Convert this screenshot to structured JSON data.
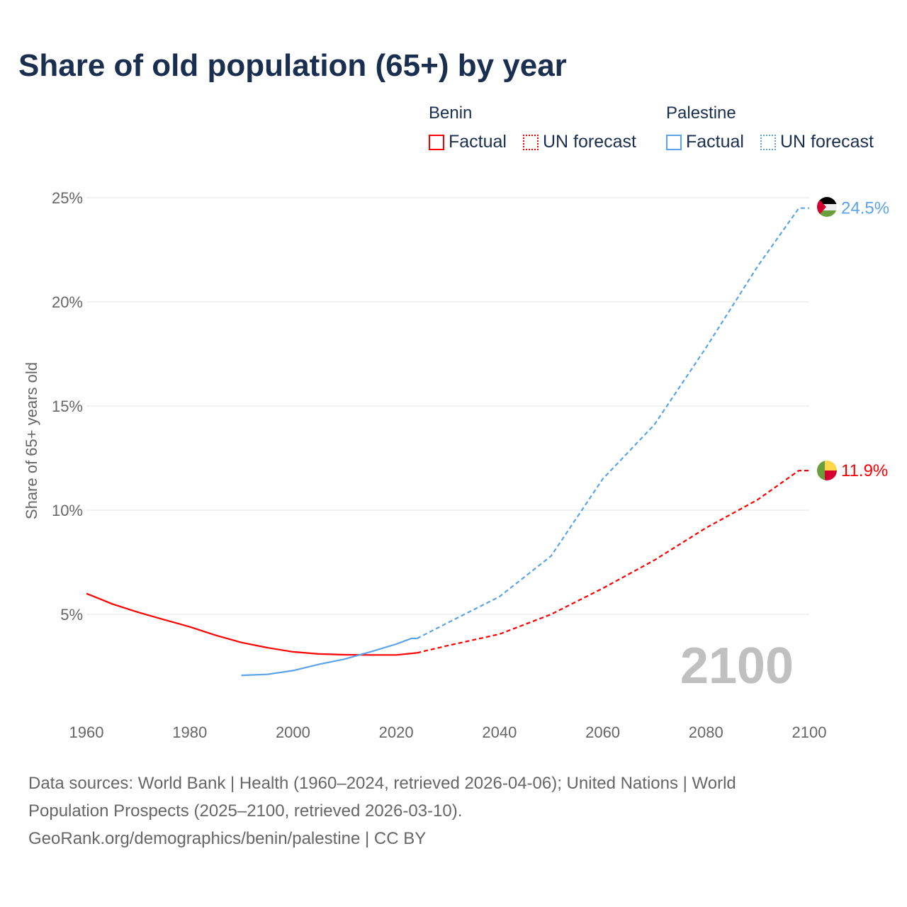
{
  "chart_data": {
    "type": "line",
    "title": "Share of old population (65+) by year",
    "ylabel": "Share of 65+ years old",
    "xlabel": "",
    "xlim": [
      1960,
      2100
    ],
    "ylim": [
      0,
      25
    ],
    "x_ticks": [
      "1960",
      "1980",
      "2000",
      "2020",
      "2040",
      "2060",
      "2080",
      "2100"
    ],
    "y_ticks": [
      {
        "v": 25,
        "label": "25%"
      },
      {
        "v": 20,
        "label": "20%"
      },
      {
        "v": 15,
        "label": "15%"
      },
      {
        "v": 10,
        "label": "10%"
      },
      {
        "v": 5,
        "label": "5%"
      }
    ],
    "grid": true,
    "year_watermark": "2100",
    "legend": {
      "groups": [
        {
          "name": "Benin",
          "factual": "Factual",
          "forecast": "UN forecast"
        },
        {
          "name": "Palestine",
          "factual": "Factual",
          "forecast": "UN forecast"
        }
      ],
      "placement": "top-right"
    },
    "series": [
      {
        "name": "Benin",
        "color": "#ff0000",
        "end_label": "11.9%",
        "factual": {
          "x": [
            1960,
            1965,
            1970,
            1975,
            1980,
            1985,
            1990,
            1995,
            2000,
            2005,
            2010,
            2015,
            2020,
            2024
          ],
          "y": [
            6.0,
            5.5,
            5.1,
            4.75,
            4.4,
            4.0,
            3.65,
            3.4,
            3.2,
            3.1,
            3.06,
            3.05,
            3.05,
            3.15
          ]
        },
        "forecast": {
          "x": [
            2024,
            2030,
            2040,
            2050,
            2060,
            2070,
            2080,
            2090,
            2098,
            2100
          ],
          "y": [
            3.15,
            3.5,
            4.05,
            5.0,
            6.25,
            7.6,
            9.15,
            10.5,
            11.9,
            11.9
          ]
        }
      },
      {
        "name": "Palestine",
        "color": "#5ba4e8",
        "end_label": "24.5%",
        "factual": {
          "x": [
            1990,
            1995,
            2000,
            2005,
            2010,
            2015,
            2020,
            2023,
            2024
          ],
          "y": [
            2.07,
            2.12,
            2.3,
            2.6,
            2.85,
            3.2,
            3.57,
            3.85,
            3.84
          ]
        },
        "forecast": {
          "x": [
            2024,
            2030,
            2040,
            2050,
            2060,
            2070,
            2080,
            2090,
            2098,
            2100
          ],
          "y": [
            3.84,
            4.6,
            5.85,
            7.8,
            11.5,
            14.1,
            17.8,
            21.7,
            24.5,
            24.5
          ]
        }
      }
    ]
  },
  "footer": {
    "line1": "Data sources: World Bank | Health (1960–2024, retrieved 2026-04-06); United Nations | World",
    "line2": "Population Prospects (2025–2100, retrieved 2026-03-10).",
    "line3": "GeoRank.org/demographics/benin/palestine | CC BY"
  }
}
